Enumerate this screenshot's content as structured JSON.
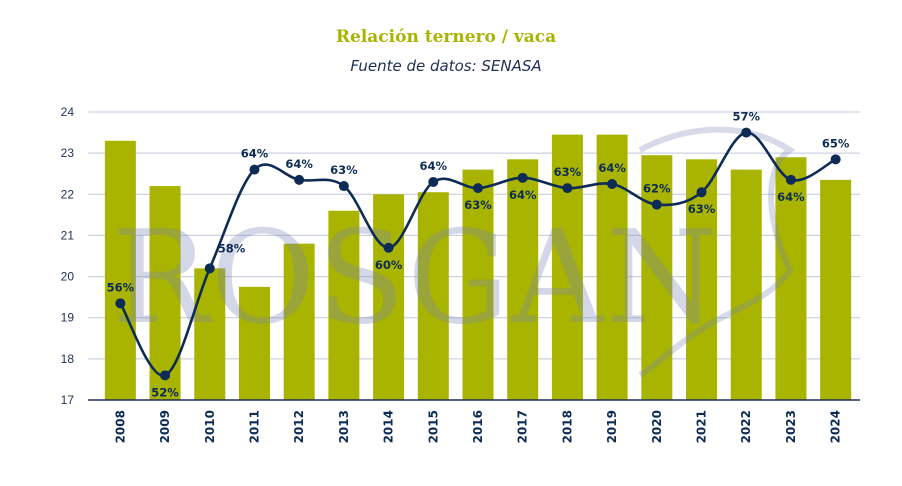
{
  "chart_data": {
    "type": "bar",
    "title": "Relación ternero / vaca",
    "subtitle": "Fuente de datos: SENASA",
    "watermark": "ROSGAN",
    "categories": [
      "2008",
      "2009",
      "2010",
      "2011",
      "2012",
      "2013",
      "2014",
      "2015",
      "2016",
      "2017",
      "2018",
      "2019",
      "2020",
      "2021",
      "2022",
      "2023",
      "2024"
    ],
    "ylim": [
      17,
      24
    ],
    "yticks": [
      17,
      18,
      19,
      20,
      21,
      22,
      23,
      24
    ],
    "grid": true,
    "series": [
      {
        "type": "bar",
        "color": "#a8b400",
        "values": [
          23.3,
          22.2,
          20.2,
          19.75,
          20.8,
          21.6,
          22.0,
          22.05,
          22.6,
          22.85,
          23.45,
          23.45,
          22.95,
          22.85,
          22.6,
          22.9,
          22.35
        ]
      },
      {
        "type": "line",
        "color": "#0d2b55",
        "values": [
          19.35,
          17.6,
          20.2,
          22.6,
          22.35,
          22.2,
          20.7,
          22.3,
          22.15,
          22.4,
          22.15,
          22.25,
          21.75,
          22.05,
          23.5,
          22.35,
          22.85
        ],
        "labels": [
          "56%",
          "52%",
          "58%",
          "64%",
          "64%",
          "63%",
          "60%",
          "64%",
          "63%",
          "64%",
          "63%",
          "64%",
          "62%",
          "63%",
          "57%",
          "64%",
          "65%"
        ],
        "label_position": [
          "above",
          "below",
          "right",
          "above",
          "above",
          "above",
          "below",
          "above",
          "below",
          "below",
          "above",
          "above",
          "above",
          "below",
          "above",
          "below",
          "above"
        ]
      }
    ]
  }
}
